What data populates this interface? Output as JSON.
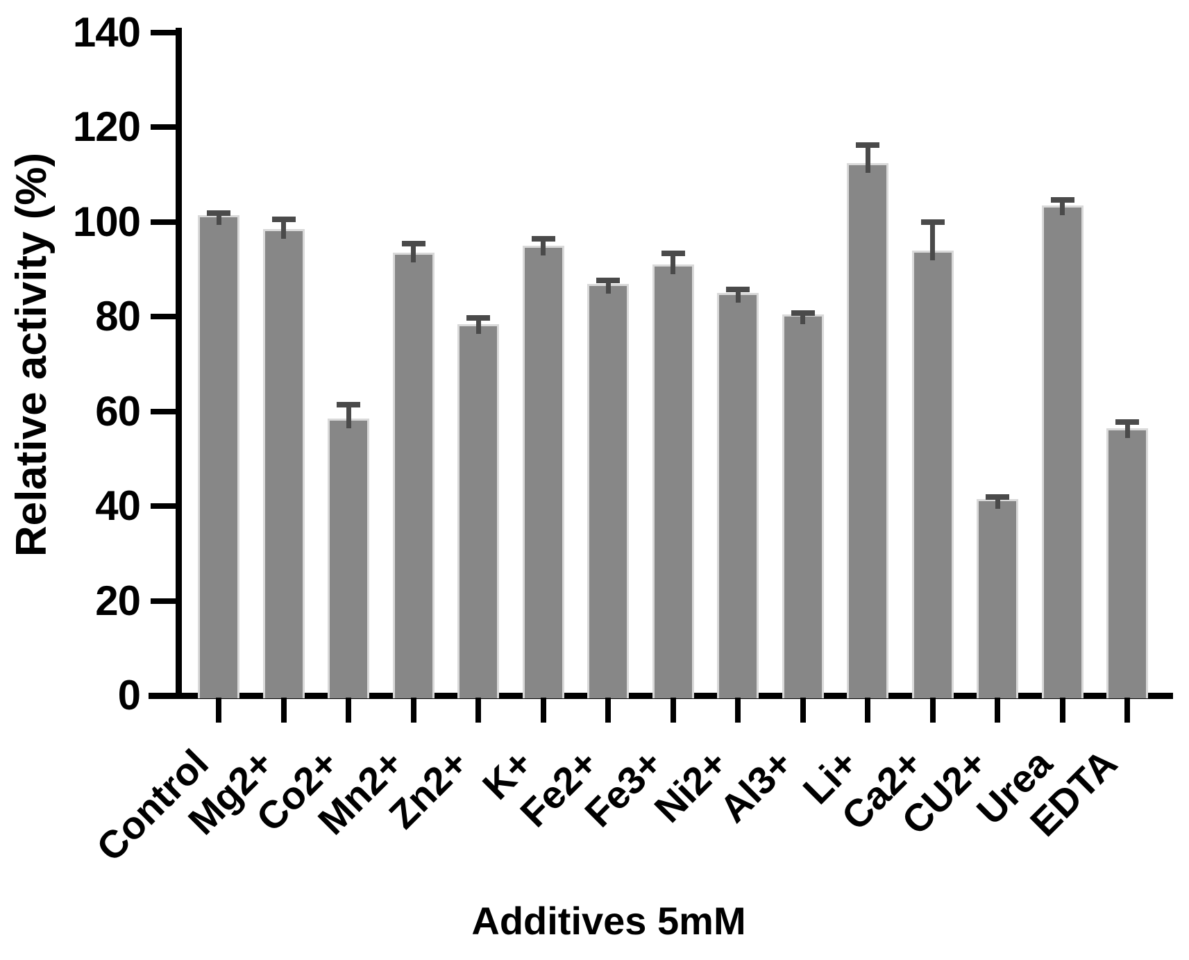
{
  "chart_data": {
    "type": "bar",
    "title": "",
    "xlabel": "Additives 5mM",
    "ylabel": "Relative activity (%)",
    "categories": [
      "Control",
      "Mg2+",
      "Co2+",
      "Mn2+",
      "Zn2+",
      "K+",
      "Fe2+",
      "Fe3+",
      "Ni2+",
      "Al3+",
      "Li+",
      "Ca2+",
      "CU2+",
      "Urea",
      "EDTA"
    ],
    "values": [
      101.5,
      98.5,
      58.5,
      93.5,
      78.5,
      95,
      87,
      91,
      85,
      80.5,
      112.5,
      94,
      41.5,
      103.5,
      56.5
    ],
    "errors": [
      1,
      2.7,
      3.5,
      2.5,
      1.8,
      2,
      1.2,
      3,
      1.4,
      0.8,
      4.3,
      6.5,
      1,
      1.8,
      1.8
    ],
    "error_direction": "plus",
    "ylim": [
      0,
      140
    ],
    "yticks": [
      0,
      20,
      40,
      60,
      80,
      100,
      120,
      140
    ],
    "grid": false,
    "legend": null,
    "bar_color": "#878787",
    "bar_border_color": "#d9d9d9",
    "error_color": "#4a4a4a",
    "axis_color": "#000000",
    "text_color": "#000000"
  }
}
